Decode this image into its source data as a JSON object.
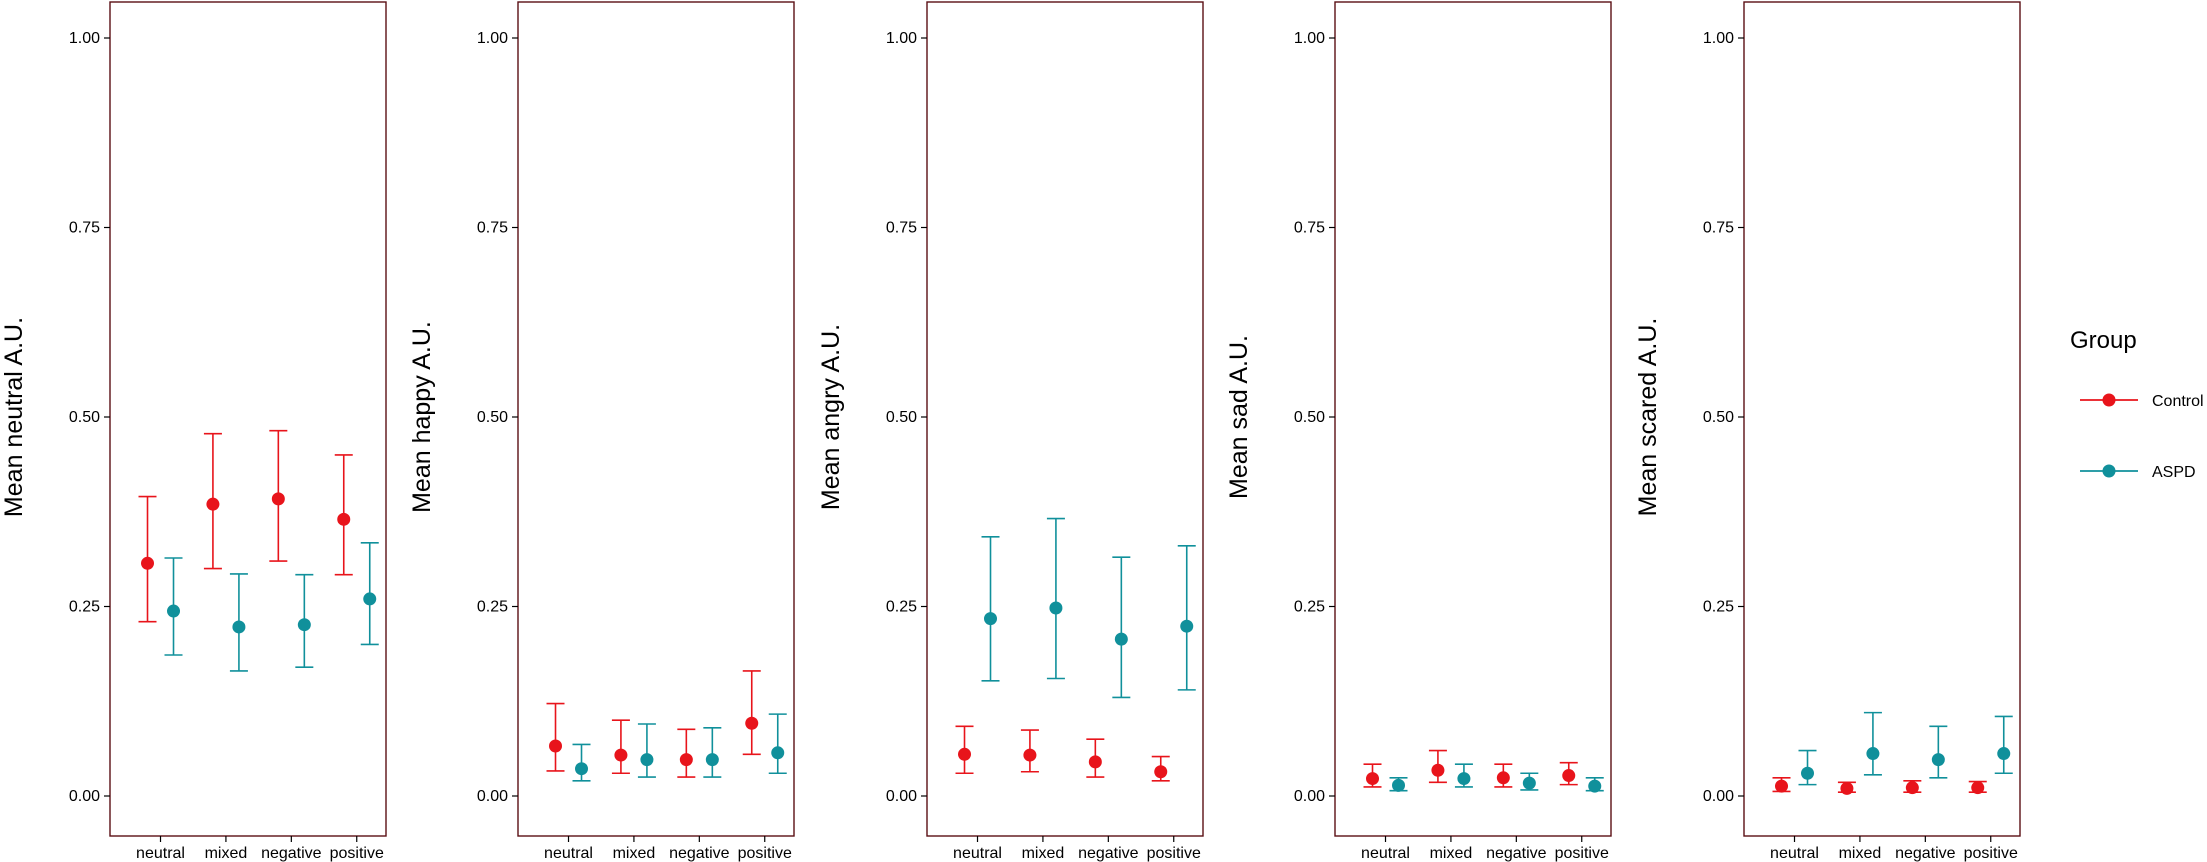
{
  "chart_data": {
    "type": "scatter",
    "categories": [
      "neutral",
      "mixed",
      "negative",
      "positive"
    ],
    "ylim": [
      0,
      1
    ],
    "yticks": [
      0.0,
      0.25,
      0.5,
      0.75,
      1.0
    ],
    "ytick_labels": [
      "0.00",
      "0.25",
      "0.50",
      "0.75",
      "1.00"
    ],
    "legend": {
      "title": "Group",
      "position": "right",
      "entries": [
        {
          "label": "Control",
          "color": "#e8141b"
        },
        {
          "label": "ASPD",
          "color": "#10909b"
        }
      ]
    },
    "panels": [
      {
        "ylabel": "Mean neutral A.U.",
        "series": [
          {
            "name": "Control",
            "values": [
              0.307,
              0.385,
              0.392,
              0.365
            ],
            "lower": [
              0.23,
              0.3,
              0.31,
              0.292
            ],
            "upper": [
              0.395,
              0.478,
              0.482,
              0.45
            ]
          },
          {
            "name": "ASPD",
            "values": [
              0.244,
              0.223,
              0.226,
              0.26
            ],
            "lower": [
              0.186,
              0.165,
              0.17,
              0.2
            ],
            "upper": [
              0.314,
              0.293,
              0.292,
              0.334
            ]
          }
        ]
      },
      {
        "ylabel": "Mean happy A.U.",
        "series": [
          {
            "name": "Control",
            "values": [
              0.066,
              0.054,
              0.048,
              0.096
            ],
            "lower": [
              0.033,
              0.03,
              0.025,
              0.055
            ],
            "upper": [
              0.122,
              0.1,
              0.088,
              0.165
            ]
          },
          {
            "name": "ASPD",
            "values": [
              0.036,
              0.048,
              0.048,
              0.057
            ],
            "lower": [
              0.02,
              0.025,
              0.025,
              0.03
            ],
            "upper": [
              0.068,
              0.095,
              0.09,
              0.108
            ]
          }
        ]
      },
      {
        "ylabel": "Mean angry A.U.",
        "series": [
          {
            "name": "Control",
            "values": [
              0.055,
              0.054,
              0.045,
              0.032
            ],
            "lower": [
              0.03,
              0.032,
              0.025,
              0.02
            ],
            "upper": [
              0.092,
              0.087,
              0.075,
              0.052
            ]
          },
          {
            "name": "ASPD",
            "values": [
              0.234,
              0.248,
              0.207,
              0.224
            ],
            "lower": [
              0.152,
              0.155,
              0.13,
              0.14
            ],
            "upper": [
              0.342,
              0.366,
              0.315,
              0.33
            ]
          }
        ]
      },
      {
        "ylabel": "Mean sad A.U.",
        "series": [
          {
            "name": "Control",
            "values": [
              0.023,
              0.034,
              0.024,
              0.027
            ],
            "lower": [
              0.012,
              0.018,
              0.012,
              0.015
            ],
            "upper": [
              0.042,
              0.06,
              0.042,
              0.044
            ]
          },
          {
            "name": "ASPD",
            "values": [
              0.014,
              0.023,
              0.017,
              0.013
            ],
            "lower": [
              0.007,
              0.012,
              0.008,
              0.007
            ],
            "upper": [
              0.024,
              0.042,
              0.03,
              0.024
            ]
          }
        ]
      },
      {
        "ylabel": "Mean scared A.U.",
        "series": [
          {
            "name": "Control",
            "values": [
              0.013,
              0.01,
              0.011,
              0.011
            ],
            "lower": [
              0.006,
              0.005,
              0.005,
              0.005
            ],
            "upper": [
              0.024,
              0.018,
              0.02,
              0.019
            ]
          },
          {
            "name": "ASPD",
            "values": [
              0.03,
              0.056,
              0.048,
              0.056
            ],
            "lower": [
              0.015,
              0.028,
              0.024,
              0.03
            ],
            "upper": [
              0.06,
              0.11,
              0.092,
              0.105
            ]
          }
        ]
      }
    ]
  }
}
